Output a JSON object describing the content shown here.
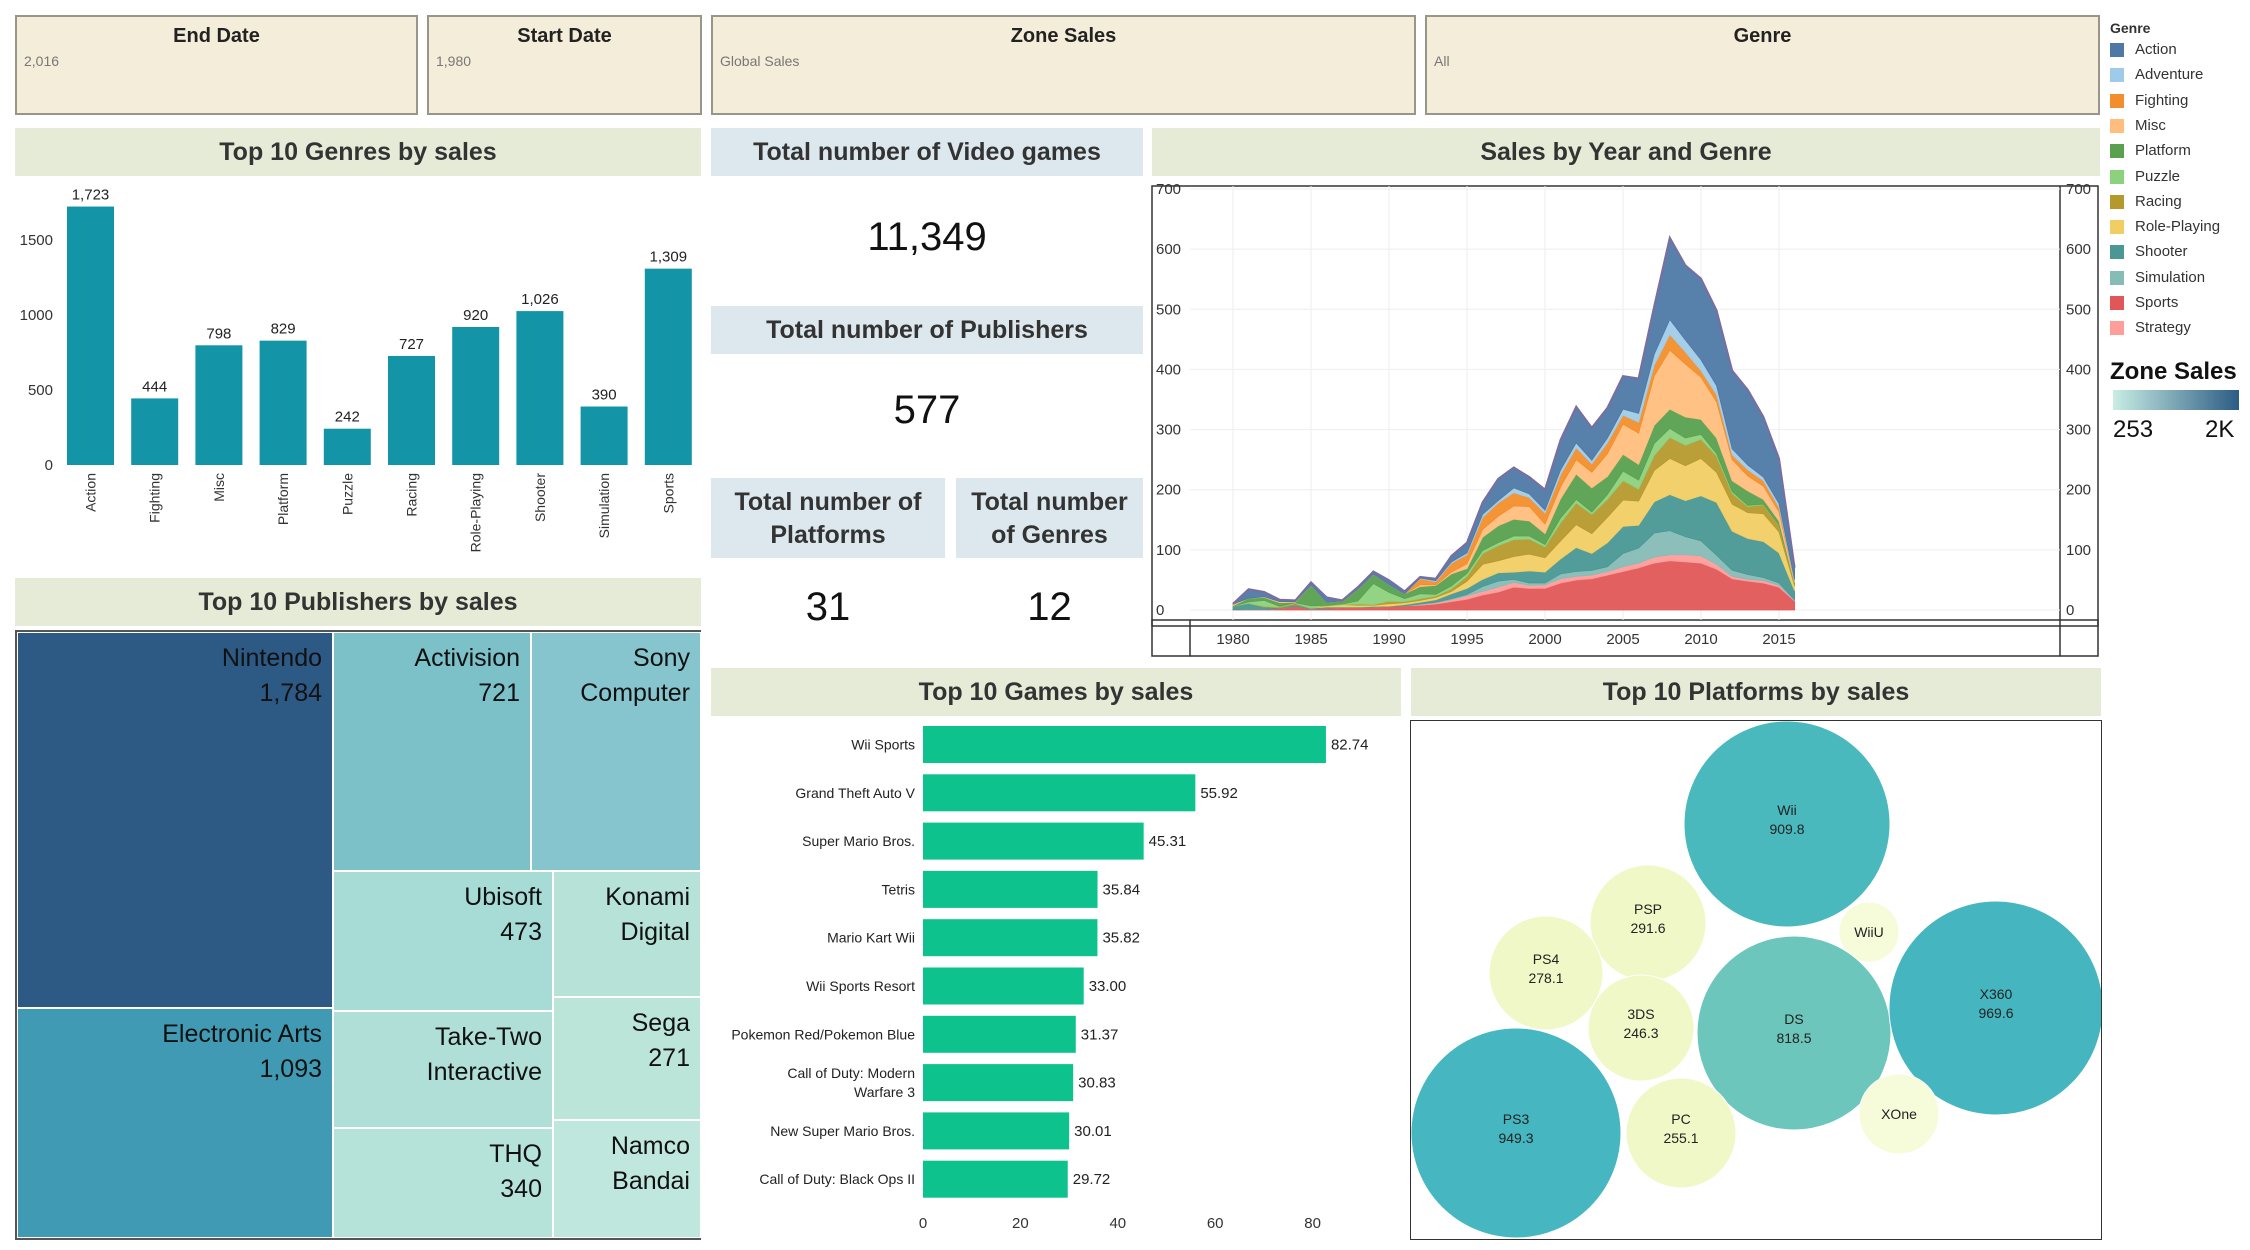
{
  "filters": [
    {
      "title": "End Date",
      "value": "2,016"
    },
    {
      "title": "Start Date",
      "value": "1,980"
    },
    {
      "title": "Zone Sales",
      "value": "Global Sales"
    },
    {
      "title": "Genre",
      "value": "All"
    }
  ],
  "titles": {
    "genres": "Top 10 Genres by sales",
    "publishers": "Top 10 Publishers by sales",
    "games": "Top 10 Games by sales",
    "platforms": "Top 10 Platforms by sales",
    "area": "Sales by Year and Genre",
    "total_games": "Total number of Video games",
    "total_publishers": "Total number of Publishers",
    "total_platforms": "Total number of Platforms",
    "total_genres": "Total number of Genres"
  },
  "kpis": {
    "video_games": "11,349",
    "publishers": "577",
    "platforms": "31",
    "genres": "12"
  },
  "legend": {
    "title": "Genre",
    "items": [
      {
        "label": "Action",
        "color": "#4e79a7"
      },
      {
        "label": "Adventure",
        "color": "#a0cbe8"
      },
      {
        "label": "Fighting",
        "color": "#f28e2b"
      },
      {
        "label": "Misc",
        "color": "#ffbe7d"
      },
      {
        "label": "Platform",
        "color": "#59a14f"
      },
      {
        "label": "Puzzle",
        "color": "#8cd17d"
      },
      {
        "label": "Racing",
        "color": "#b6992d"
      },
      {
        "label": "Role-Playing",
        "color": "#f1ce63"
      },
      {
        "label": "Shooter",
        "color": "#499894"
      },
      {
        "label": "Simulation",
        "color": "#86bcb6"
      },
      {
        "label": "Sports",
        "color": "#e15759"
      },
      {
        "label": "Strategy",
        "color": "#ff9d9a"
      }
    ],
    "zone_title": "Zone Sales",
    "zone_min": "253",
    "zone_max": "2K",
    "zone_colors": [
      "#c9ede4",
      "#2b5c84"
    ]
  },
  "chart_data": [
    {
      "id": "genres",
      "type": "bar",
      "title": "Top 10 Genres by sales",
      "categories": [
        "Action",
        "Fighting",
        "Misc",
        "Platform",
        "Puzzle",
        "Racing",
        "Role-Playing",
        "Shooter",
        "Simulation",
        "Sports"
      ],
      "values": [
        1723,
        444,
        798,
        829,
        242,
        727,
        920,
        1026,
        390,
        1309
      ],
      "value_labels": [
        "1,723",
        "444",
        "798",
        "829",
        "242",
        "727",
        "920",
        "1,026",
        "390",
        "1,309"
      ],
      "ylim": [
        0,
        1800
      ],
      "yticks": [
        0,
        500,
        1000,
        1500
      ],
      "color": "#1395a7"
    },
    {
      "id": "publishers",
      "type": "treemap",
      "title": "Top 10 Publishers by sales",
      "items": [
        {
          "name": "Nintendo",
          "value": 1784,
          "label": "1,784",
          "color": "#2d5985"
        },
        {
          "name": "Electronic Arts",
          "value": 1093,
          "label": "1,093",
          "color": "#419ab4"
        },
        {
          "name": "Activision",
          "value": 721,
          "label": "721",
          "color": "#7cc0c8"
        },
        {
          "name": "Sony Computer",
          "value": null,
          "label": "",
          "color": "#86c5cd"
        },
        {
          "name": "Ubisoft",
          "value": 473,
          "label": "473",
          "color": "#a7dbd6"
        },
        {
          "name": "Konami Digital",
          "value": null,
          "label": "",
          "color": "#b6e2d7"
        },
        {
          "name": "Take-Two Interactive",
          "value": null,
          "label": "",
          "color": "#afdfd7"
        },
        {
          "name": "Sega",
          "value": 271,
          "label": "271",
          "color": "#bce5da"
        },
        {
          "name": "THQ",
          "value": 340,
          "label": "340",
          "color": "#b5e2d9"
        },
        {
          "name": "Namco Bandai",
          "value": null,
          "label": "",
          "color": "#bfe7dd"
        }
      ]
    },
    {
      "id": "area",
      "type": "area",
      "title": "Sales by Year and Genre",
      "x": [
        1980,
        1981,
        1982,
        1983,
        1984,
        1985,
        1986,
        1987,
        1988,
        1989,
        1990,
        1991,
        1992,
        1993,
        1994,
        1995,
        1996,
        1997,
        1998,
        1999,
        2000,
        2001,
        2002,
        2003,
        2004,
        2005,
        2006,
        2007,
        2008,
        2009,
        2010,
        2011,
        2012,
        2013,
        2014,
        2015,
        2016
      ],
      "xticks": [
        1980,
        1985,
        1990,
        1995,
        2000,
        2005,
        2010,
        2015
      ],
      "ylim": [
        0,
        700
      ],
      "yticks": [
        0,
        100,
        200,
        300,
        400,
        500,
        600,
        700
      ],
      "series": [
        {
          "name": "Sports",
          "color": "#e15759",
          "values": [
            0.5,
            1,
            1,
            3,
            6,
            2,
            3,
            4,
            4,
            5,
            6,
            7,
            8,
            10,
            14,
            18,
            25,
            30,
            38,
            36,
            36,
            45,
            50,
            52,
            58,
            64,
            70,
            78,
            82,
            80,
            78,
            68,
            52,
            48,
            45,
            38,
            15
          ]
        },
        {
          "name": "Strategy",
          "color": "#ff9d9a",
          "values": [
            0,
            0,
            0,
            0,
            0,
            0,
            0,
            0,
            0,
            0,
            0,
            0,
            1,
            2,
            3,
            6,
            6,
            8,
            8,
            5,
            6,
            7,
            6,
            6,
            6,
            8,
            8,
            10,
            10,
            12,
            12,
            8,
            4,
            3,
            4,
            3,
            1
          ]
        },
        {
          "name": "Simulation",
          "color": "#86bcb6",
          "values": [
            0,
            0,
            0,
            0,
            0,
            0,
            0,
            0,
            0,
            0,
            0,
            0,
            1,
            1,
            2,
            2,
            8,
            10,
            5,
            4,
            3,
            8,
            8,
            8,
            8,
            22,
            25,
            40,
            40,
            30,
            25,
            15,
            10,
            8,
            5,
            4,
            1
          ]
        },
        {
          "name": "Shooter",
          "color": "#499894",
          "values": [
            6,
            10,
            4,
            1,
            3,
            1,
            2,
            1,
            1,
            1,
            0.5,
            2,
            3,
            4,
            8,
            10,
            12,
            14,
            12,
            20,
            18,
            25,
            40,
            28,
            40,
            45,
            38,
            52,
            60,
            60,
            75,
            88,
            65,
            60,
            60,
            50,
            15
          ]
        },
        {
          "name": "Role-Playing",
          "color": "#f1ce63",
          "values": [
            0,
            0,
            0,
            0,
            0,
            0,
            2,
            4,
            3,
            2,
            4,
            3,
            3,
            4,
            4,
            12,
            25,
            20,
            26,
            28,
            24,
            30,
            38,
            33,
            42,
            44,
            40,
            52,
            60,
            58,
            62,
            50,
            45,
            43,
            46,
            35,
            8
          ]
        },
        {
          "name": "Racing",
          "color": "#b6992d",
          "values": [
            0,
            0.5,
            1,
            1,
            2,
            0,
            1,
            0,
            2,
            1,
            4,
            2,
            3,
            2,
            4,
            8,
            18,
            25,
            28,
            25,
            18,
            30,
            36,
            32,
            30,
            32,
            20,
            25,
            35,
            34,
            32,
            27,
            18,
            10,
            15,
            10,
            3
          ]
        },
        {
          "name": "Puzzle",
          "color": "#8cd17d",
          "values": [
            0,
            2,
            10,
            1,
            1,
            4,
            0,
            1,
            5,
            35,
            15,
            5,
            8,
            3,
            5,
            5,
            5,
            5,
            6,
            5,
            4,
            8,
            6,
            4,
            8,
            16,
            15,
            20,
            15,
            12,
            8,
            4,
            3,
            2,
            1,
            1,
            0.5
          ]
        },
        {
          "name": "Platform",
          "color": "#59a14f",
          "values": [
            0.5,
            6,
            5,
            6,
            1,
            35,
            5,
            5,
            20,
            16,
            13,
            8,
            12,
            15,
            20,
            8,
            22,
            28,
            28,
            25,
            18,
            32,
            42,
            40,
            30,
            28,
            26,
            30,
            32,
            35,
            25,
            26,
            18,
            24,
            8,
            7,
            2
          ]
        },
        {
          "name": "Misc",
          "color": "#ffbe7d",
          "values": [
            2,
            0,
            1,
            2,
            1,
            0,
            0,
            0,
            0,
            0,
            0,
            0,
            3,
            1,
            3,
            8,
            13,
            16,
            22,
            24,
            16,
            20,
            24,
            26,
            38,
            50,
            52,
            82,
            98,
            88,
            70,
            60,
            35,
            25,
            22,
            15,
            3
          ]
        },
        {
          "name": "Fighting",
          "color": "#f28e2b",
          "values": [
            1,
            0,
            0,
            0,
            0,
            0,
            0,
            0,
            0,
            0,
            0,
            0,
            10,
            5,
            15,
            15,
            20,
            22,
            22,
            15,
            18,
            20,
            20,
            14,
            18,
            15,
            18,
            18,
            26,
            20,
            11,
            12,
            8,
            10,
            9,
            8,
            1
          ]
        },
        {
          "name": "Adventure",
          "color": "#a0cbe8",
          "values": [
            0,
            0,
            0,
            0,
            0,
            0,
            0,
            0,
            0,
            0,
            0,
            0,
            1,
            2,
            2,
            3,
            5,
            4,
            8,
            6,
            5,
            8,
            8,
            6,
            8,
            10,
            15,
            18,
            25,
            20,
            18,
            15,
            10,
            8,
            6,
            6,
            1
          ]
        },
        {
          "name": "Action",
          "color": "#4e79a7",
          "values": [
            0.5,
            15,
            8,
            3,
            2,
            4,
            8,
            1,
            3,
            4,
            7,
            4,
            2,
            3,
            10,
            17,
            20,
            36,
            34,
            28,
            34,
            50,
            60,
            54,
            50,
            55,
            58,
            80,
            136,
            124,
            135,
            125,
            130,
            125,
            100,
            75,
            20
          ]
        }
      ]
    },
    {
      "id": "games",
      "type": "bar",
      "orientation": "horizontal",
      "title": "Top 10 Games by sales",
      "categories": [
        "Wii Sports",
        "Grand Theft Auto V",
        "Super Mario Bros.",
        "Tetris",
        "Mario Kart Wii",
        "Wii Sports Resort",
        "Pokemon Red/Pokemon Blue",
        "Call of Duty: Modern Warfare 3",
        "New Super Mario Bros.",
        "Call of Duty: Black Ops II"
      ],
      "category_lines": [
        [
          "Wii Sports"
        ],
        [
          "Grand Theft Auto V"
        ],
        [
          "Super Mario Bros."
        ],
        [
          "Tetris"
        ],
        [
          "Mario Kart Wii"
        ],
        [
          "Wii Sports Resort"
        ],
        [
          "Pokemon Red/Pokemon Blue"
        ],
        [
          "Call of Duty: Modern",
          "Warfare 3"
        ],
        [
          "New Super Mario Bros."
        ],
        [
          "Call of Duty: Black Ops II"
        ]
      ],
      "values": [
        82.74,
        55.92,
        45.31,
        35.84,
        35.82,
        33.0,
        31.37,
        30.83,
        30.01,
        29.72
      ],
      "value_labels": [
        "82.74",
        "55.92",
        "45.31",
        "35.84",
        "35.82",
        "33.00",
        "31.37",
        "30.83",
        "30.01",
        "29.72"
      ],
      "xlim": [
        0,
        90
      ],
      "xticks": [
        0,
        20,
        40,
        60,
        80
      ],
      "color": "#0ec28d"
    },
    {
      "id": "platforms",
      "type": "bubble",
      "title": "Top 10 Platforms by sales",
      "items": [
        {
          "name": "Wii",
          "value": 909.8,
          "label": "909.8",
          "color": "#4ab9bd"
        },
        {
          "name": "PSP",
          "value": 291.6,
          "label": "291.6",
          "color": "#f1f8c8"
        },
        {
          "name": "WiiU",
          "value": null,
          "label": "",
          "color": "#f6fbd9"
        },
        {
          "name": "PS4",
          "value": 278.1,
          "label": "278.1",
          "color": "#f1f8c8"
        },
        {
          "name": "3DS",
          "value": 246.3,
          "label": "246.3",
          "color": "#f1f8c8"
        },
        {
          "name": "DS",
          "value": 818.5,
          "label": "818.5",
          "color": "#6cc6bb"
        },
        {
          "name": "X360",
          "value": 969.6,
          "label": "969.6",
          "color": "#45b6c0"
        },
        {
          "name": "PC",
          "value": 255.1,
          "label": "255.1",
          "color": "#f1f8c8"
        },
        {
          "name": "XOne",
          "value": null,
          "label": "",
          "color": "#f6fbd9"
        },
        {
          "name": "PS3",
          "value": 949.3,
          "label": "949.3",
          "color": "#46b7c0"
        }
      ]
    }
  ]
}
